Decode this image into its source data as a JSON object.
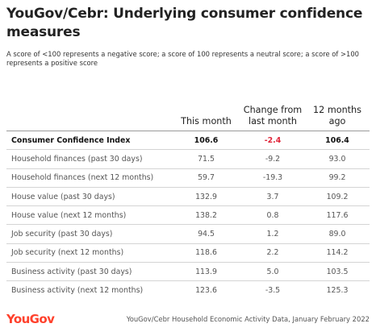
{
  "title": "YouGov/Cebr: Underlying consumer confidence measures",
  "subtitle": "A score of <100 represents a negative score; a score of 100 represents a neutral score; a score of >100 represents a positive score",
  "chart_data": {
    "type": "table",
    "columns": [
      "",
      "This month",
      "Change from last month",
      "12 months ago"
    ],
    "rows": [
      {
        "label": "Consumer Confidence Index",
        "this_month": "106.6",
        "change": "-2.4",
        "ago": "106.4",
        "bold": true
      },
      {
        "label": "Household finances (past 30 days)",
        "this_month": "71.5",
        "change": "-9.2",
        "ago": "93.0"
      },
      {
        "label": "Household finances (next 12 months)",
        "this_month": "59.7",
        "change": "-19.3",
        "ago": "99.2"
      },
      {
        "label": "House value (past 30 days)",
        "this_month": "132.9",
        "change": "3.7",
        "ago": "109.2"
      },
      {
        "label": "House value (next 12 months)",
        "this_month": "138.2",
        "change": "0.8",
        "ago": "117.6"
      },
      {
        "label": "Job security (past 30 days)",
        "this_month": "94.5",
        "change": "1.2",
        "ago": "89.0"
      },
      {
        "label": "Job security (next 12 months)",
        "this_month": "118.6",
        "change": "2.2",
        "ago": "114.2"
      },
      {
        "label": "Business activity (past 30 days)",
        "this_month": "113.9",
        "change": "5.0",
        "ago": "103.5"
      },
      {
        "label": "Business activity (next 12 months)",
        "this_month": "123.6",
        "change": "-3.5",
        "ago": "125.3"
      }
    ],
    "colors": {
      "negative": "#e0263a",
      "positive": "#9d3be0"
    }
  },
  "footer": {
    "logo": "YouGov",
    "source": "YouGov/Cebr Household Economic Activity Data, January February 2022"
  }
}
